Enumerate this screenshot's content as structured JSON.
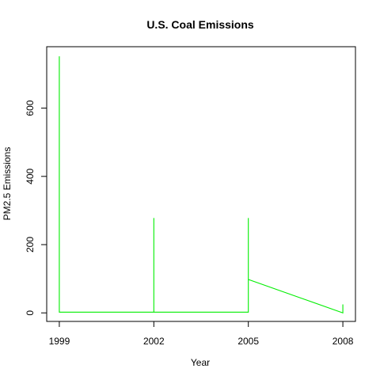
{
  "chart_data": {
    "type": "line",
    "title": "U.S. Coal Emissions",
    "xlabel": "Year",
    "ylabel": "PM2.5 Emissions",
    "xlim": [
      1998.6,
      2008.4
    ],
    "ylim": [
      -25,
      780
    ],
    "x_ticks": [
      1999,
      2002,
      2005,
      2008
    ],
    "x_tick_labels": [
      "1999",
      "2002",
      "2005",
      "2008"
    ],
    "y_ticks": [
      0,
      200,
      400,
      600
    ],
    "y_tick_labels": [
      "0",
      "200",
      "400",
      "600"
    ],
    "grid": false,
    "line_color": "#00ee00",
    "series": [
      {
        "x": [
          1999,
          1999,
          1999,
          2002,
          2002,
          2002,
          2005,
          2005,
          2005,
          2008,
          2008
        ],
        "y": [
          752,
          2,
          2,
          2,
          278,
          2,
          2,
          278,
          98,
          0,
          25
        ]
      }
    ]
  }
}
